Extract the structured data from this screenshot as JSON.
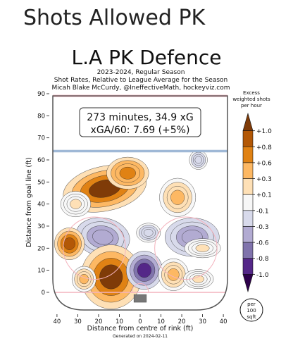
{
  "header": {
    "title": "Shots Allowed PK"
  },
  "chart_data": {
    "type": "heatmap",
    "title": "L.A PK Defence",
    "subtitle_lines": [
      "2023-2024, Regular Season",
      "Shot Rates, Relative to League Average for the Season",
      "Micah Blake McCurdy, @IneffectiveMath, hockeyviz.com"
    ],
    "info_box": [
      "273 minutes, 34.9 xG",
      "xGA/60: 7.69 (+5%)"
    ],
    "xlabel": "Distance from centre of rink (ft)",
    "ylabel": "Distance from goal line (ft)",
    "x_ticks": [
      40,
      30,
      20,
      10,
      0,
      10,
      20,
      30,
      40
    ],
    "y_ticks": [
      90,
      80,
      70,
      60,
      50,
      40,
      30,
      20,
      10,
      0
    ],
    "xlim": [
      -42,
      42
    ],
    "ylim": [
      -8,
      90
    ],
    "footer": "Generated on 2024-02-11",
    "legend": {
      "title_lines": [
        "Excess",
        "weighted shots",
        "per hour"
      ],
      "levels": [
        {
          "label": "+1.0",
          "value": 1.0
        },
        {
          "label": "+0.8",
          "value": 0.8
        },
        {
          "label": "+0.6",
          "value": 0.6
        },
        {
          "label": "+0.3",
          "value": 0.3
        },
        {
          "label": "+0.1",
          "value": 0.1
        },
        {
          "label": "-0.1",
          "value": -0.1
        },
        {
          "label": "-0.3",
          "value": -0.3
        },
        {
          "label": "-0.6",
          "value": -0.6
        },
        {
          "label": "-0.8",
          "value": -0.8
        },
        {
          "label": "-1.0",
          "value": -1.0
        }
      ],
      "colors": [
        "#7f3b08",
        "#b35806",
        "#e08214",
        "#fdb863",
        "#fee0b6",
        "#f7f7f7",
        "#d8daeb",
        "#b2abd2",
        "#8073ac",
        "#542788",
        "#2d004b"
      ],
      "unit_badge": [
        "per",
        "100",
        "sqft"
      ]
    },
    "blobs": [
      {
        "x": -17,
        "y": 47,
        "rx": 14,
        "ry": 7,
        "rot": -12,
        "value": 1.0
      },
      {
        "x": -6,
        "y": 54,
        "rx": 7,
        "ry": 5,
        "rot": 0,
        "value": 0.6
      },
      {
        "x": 18,
        "y": 43,
        "rx": 6,
        "ry": 6,
        "rot": 0,
        "value": 0.3
      },
      {
        "x": -31,
        "y": 40,
        "rx": 5,
        "ry": 4,
        "rot": 0,
        "value": 0.1
      },
      {
        "x": 28,
        "y": 60,
        "rx": 3,
        "ry": 3,
        "rot": 0,
        "value": -0.3
      },
      {
        "x": -18,
        "y": 25,
        "rx": 9,
        "ry": 6,
        "rot": 10,
        "value": -0.6
      },
      {
        "x": 4,
        "y": 27,
        "rx": 4,
        "ry": 3,
        "rot": 0,
        "value": -0.3
      },
      {
        "x": 25,
        "y": 25,
        "rx": 9,
        "ry": 6,
        "rot": 0,
        "value": -0.6
      },
      {
        "x": -34,
        "y": 22,
        "rx": 5,
        "ry": 5,
        "rot": 0,
        "value": 0.8
      },
      {
        "x": 30,
        "y": 20,
        "rx": 6,
        "ry": 3,
        "rot": 0,
        "value": 0.1
      },
      {
        "x": -14,
        "y": 7,
        "rx": 10,
        "ry": 10,
        "rot": 0,
        "value": 1.0
      },
      {
        "x": 2,
        "y": 10,
        "rx": 6,
        "ry": 6,
        "rot": 0,
        "value": -1.0
      },
      {
        "x": 16,
        "y": 8,
        "rx": 5,
        "ry": 5,
        "rot": 0,
        "value": 0.3
      },
      {
        "x": -27,
        "y": 6,
        "rx": 4,
        "ry": 4,
        "rot": 0,
        "value": 0.3
      },
      {
        "x": 28,
        "y": 6,
        "rx": 5,
        "ry": 3,
        "rot": 0,
        "value": 0.1
      }
    ]
  }
}
